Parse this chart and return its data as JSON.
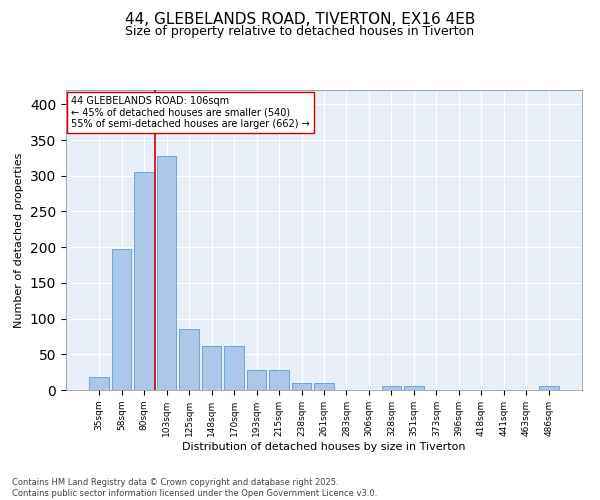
{
  "title1": "44, GLEBELANDS ROAD, TIVERTON, EX16 4EB",
  "title2": "Size of property relative to detached houses in Tiverton",
  "xlabel": "Distribution of detached houses by size in Tiverton",
  "ylabel": "Number of detached properties",
  "categories": [
    "35sqm",
    "58sqm",
    "80sqm",
    "103sqm",
    "125sqm",
    "148sqm",
    "170sqm",
    "193sqm",
    "215sqm",
    "238sqm",
    "261sqm",
    "283sqm",
    "306sqm",
    "328sqm",
    "351sqm",
    "373sqm",
    "396sqm",
    "418sqm",
    "441sqm",
    "463sqm",
    "486sqm"
  ],
  "values": [
    18,
    197,
    305,
    328,
    85,
    62,
    62,
    28,
    28,
    10,
    10,
    0,
    0,
    5,
    5,
    0,
    0,
    0,
    0,
    0,
    5
  ],
  "bar_color": "#aec6e8",
  "bar_edge_color": "#5a9fd4",
  "vline_color": "#cc0000",
  "vline_x_index": 3,
  "annotation_text": "44 GLEBELANDS ROAD: 106sqm\n← 45% of detached houses are smaller (540)\n55% of semi-detached houses are larger (662) →",
  "annotation_box_color": "#ffffff",
  "annotation_box_edge": "#cc0000",
  "ylim": [
    0,
    420
  ],
  "yticks": [
    0,
    50,
    100,
    150,
    200,
    250,
    300,
    350,
    400
  ],
  "bg_color": "#e8eef7",
  "footer": "Contains HM Land Registry data © Crown copyright and database right 2025.\nContains public sector information licensed under the Open Government Licence v3.0.",
  "title_fontsize": 11,
  "subtitle_fontsize": 9,
  "axis_label_fontsize": 8,
  "tick_fontsize": 6.5,
  "annotation_fontsize": 7,
  "footer_fontsize": 6
}
